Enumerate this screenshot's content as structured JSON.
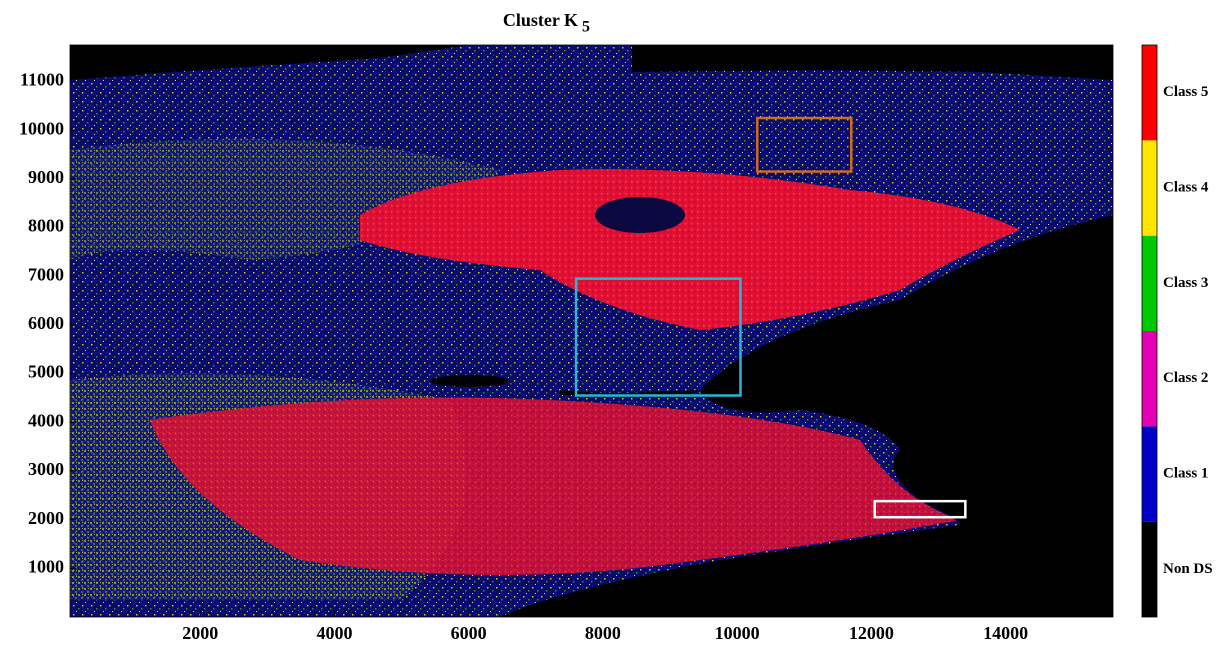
{
  "chart_data": {
    "type": "image",
    "title": "Cluster K",
    "title_subscript": "5",
    "xlim": [
      60,
      15600
    ],
    "ylim": [
      0,
      11750
    ],
    "xticks": [
      2000,
      4000,
      6000,
      8000,
      10000,
      12000,
      14000
    ],
    "yticks": [
      1000,
      2000,
      3000,
      4000,
      5000,
      6000,
      7000,
      8000,
      9000,
      10000,
      11000
    ],
    "classes": [
      {
        "name": "Non DS",
        "color": "#000000"
      },
      {
        "name": "Class 1",
        "color": "#0000c8"
      },
      {
        "name": "Class 2",
        "color": "#e600b4"
      },
      {
        "name": "Class 3",
        "color": "#00c800"
      },
      {
        "name": "Class 4",
        "color": "#ffe600"
      },
      {
        "name": "Class 5",
        "color": "#ff0000"
      }
    ],
    "regions": [
      {
        "color": "#d2691e",
        "x": [
          10300,
          11700
        ],
        "y": [
          9150,
          10250
        ]
      },
      {
        "color": "#29b6d6",
        "x": [
          7600,
          10050
        ],
        "y": [
          4550,
          6950
        ]
      },
      {
        "color": "#ffffff",
        "x": [
          12050,
          13400
        ],
        "y": [
          2050,
          2380
        ]
      }
    ]
  }
}
